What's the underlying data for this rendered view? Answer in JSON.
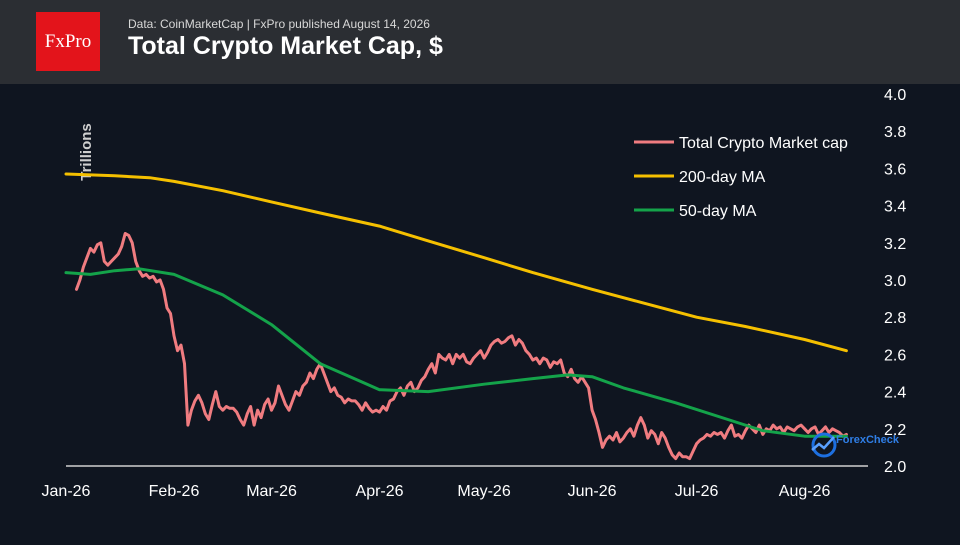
{
  "header": {
    "logo_text": "FxPro",
    "source": "Data: CoinMarketCap | FxPro published August 14, 2026",
    "title": "Total Crypto Market Cap, $"
  },
  "watermark": "ForexCheck",
  "colors": {
    "background": "#0f1520",
    "header": "#2b2e33",
    "brand": "#e3141b",
    "market_cap": "#f07c80",
    "ma200": "#f5c000",
    "ma50": "#14a34a"
  },
  "chart_data": {
    "type": "line",
    "title": "Total Crypto Market Cap, $",
    "ylabel": "Trillions",
    "ylim": [
      2.0,
      4.0
    ],
    "y_ticks": [
      "2.0",
      "2.2",
      "2.4",
      "2.6",
      "2.8",
      "3.0",
      "3.2",
      "3.4",
      "3.6",
      "3.8",
      "4.0"
    ],
    "x_ticks": [
      {
        "label": "Jan-26",
        "date": "2026-01-01"
      },
      {
        "label": "Feb-26",
        "date": "2026-02-01"
      },
      {
        "label": "Mar-26",
        "date": "2026-03-01"
      },
      {
        "label": "Apr-26",
        "date": "2026-04-01"
      },
      {
        "label": "May-26",
        "date": "2026-05-01"
      },
      {
        "label": "Jun-26",
        "date": "2026-06-01"
      },
      {
        "label": "Jul-26",
        "date": "2026-07-01"
      },
      {
        "label": "Aug-26",
        "date": "2026-08-01"
      }
    ],
    "legend_position": "top-right",
    "grid": false,
    "series": [
      {
        "name": "Total Crypto Market cap",
        "color": "#f07c80",
        "points": [
          [
            "2026-01-04",
            2.95
          ],
          [
            "2026-01-05",
            3.0
          ],
          [
            "2026-01-06",
            3.07
          ],
          [
            "2026-01-07",
            3.12
          ],
          [
            "2026-01-08",
            3.17
          ],
          [
            "2026-01-09",
            3.15
          ],
          [
            "2026-01-10",
            3.19
          ],
          [
            "2026-01-11",
            3.2
          ],
          [
            "2026-01-12",
            3.1
          ],
          [
            "2026-01-13",
            3.08
          ],
          [
            "2026-01-14",
            3.1
          ],
          [
            "2026-01-15",
            3.12
          ],
          [
            "2026-01-16",
            3.14
          ],
          [
            "2026-01-17",
            3.18
          ],
          [
            "2026-01-18",
            3.25
          ],
          [
            "2026-01-19",
            3.24
          ],
          [
            "2026-01-20",
            3.2
          ],
          [
            "2026-01-21",
            3.1
          ],
          [
            "2026-01-22",
            3.05
          ],
          [
            "2026-01-23",
            3.02
          ],
          [
            "2026-01-24",
            3.03
          ],
          [
            "2026-01-25",
            3.01
          ],
          [
            "2026-01-26",
            3.02
          ],
          [
            "2026-01-27",
            2.99
          ],
          [
            "2026-01-28",
            3.0
          ],
          [
            "2026-01-29",
            2.95
          ],
          [
            "2026-01-30",
            2.85
          ],
          [
            "2026-01-31",
            2.82
          ],
          [
            "2026-02-01",
            2.7
          ],
          [
            "2026-02-02",
            2.62
          ],
          [
            "2026-02-03",
            2.65
          ],
          [
            "2026-02-04",
            2.55
          ],
          [
            "2026-02-05",
            2.22
          ],
          [
            "2026-02-06",
            2.3
          ],
          [
            "2026-02-07",
            2.35
          ],
          [
            "2026-02-08",
            2.38
          ],
          [
            "2026-02-09",
            2.34
          ],
          [
            "2026-02-10",
            2.28
          ],
          [
            "2026-02-11",
            2.25
          ],
          [
            "2026-02-12",
            2.33
          ],
          [
            "2026-02-13",
            2.4
          ],
          [
            "2026-02-14",
            2.32
          ],
          [
            "2026-02-15",
            2.3
          ],
          [
            "2026-02-16",
            2.32
          ],
          [
            "2026-02-17",
            2.31
          ],
          [
            "2026-02-18",
            2.31
          ],
          [
            "2026-02-19",
            2.29
          ],
          [
            "2026-02-20",
            2.25
          ],
          [
            "2026-02-21",
            2.22
          ],
          [
            "2026-02-22",
            2.28
          ],
          [
            "2026-02-23",
            2.32
          ],
          [
            "2026-02-24",
            2.22
          ],
          [
            "2026-02-25",
            2.3
          ],
          [
            "2026-02-26",
            2.26
          ],
          [
            "2026-02-27",
            2.33
          ],
          [
            "2026-02-28",
            2.36
          ],
          [
            "2026-03-01",
            2.3
          ],
          [
            "2026-03-02",
            2.34
          ],
          [
            "2026-03-03",
            2.43
          ],
          [
            "2026-03-04",
            2.38
          ],
          [
            "2026-03-05",
            2.33
          ],
          [
            "2026-03-06",
            2.3
          ],
          [
            "2026-03-07",
            2.35
          ],
          [
            "2026-03-08",
            2.4
          ],
          [
            "2026-03-09",
            2.38
          ],
          [
            "2026-03-10",
            2.43
          ],
          [
            "2026-03-11",
            2.45
          ],
          [
            "2026-03-12",
            2.5
          ],
          [
            "2026-03-13",
            2.47
          ],
          [
            "2026-03-14",
            2.52
          ],
          [
            "2026-03-15",
            2.55
          ],
          [
            "2026-03-16",
            2.5
          ],
          [
            "2026-03-17",
            2.45
          ],
          [
            "2026-03-18",
            2.4
          ],
          [
            "2026-03-19",
            2.42
          ],
          [
            "2026-03-20",
            2.38
          ],
          [
            "2026-03-21",
            2.37
          ],
          [
            "2026-03-22",
            2.34
          ],
          [
            "2026-03-23",
            2.36
          ],
          [
            "2026-03-24",
            2.35
          ],
          [
            "2026-03-25",
            2.35
          ],
          [
            "2026-03-26",
            2.33
          ],
          [
            "2026-03-27",
            2.3
          ],
          [
            "2026-03-28",
            2.34
          ],
          [
            "2026-03-29",
            2.31
          ],
          [
            "2026-03-30",
            2.29
          ],
          [
            "2026-03-31",
            2.3
          ],
          [
            "2026-04-01",
            2.29
          ],
          [
            "2026-04-02",
            2.32
          ],
          [
            "2026-04-03",
            2.3
          ],
          [
            "2026-04-04",
            2.35
          ],
          [
            "2026-04-05",
            2.36
          ],
          [
            "2026-04-06",
            2.4
          ],
          [
            "2026-04-07",
            2.42
          ],
          [
            "2026-04-08",
            2.38
          ],
          [
            "2026-04-09",
            2.43
          ],
          [
            "2026-04-10",
            2.45
          ],
          [
            "2026-04-11",
            2.4
          ],
          [
            "2026-04-12",
            2.42
          ],
          [
            "2026-04-13",
            2.46
          ],
          [
            "2026-04-14",
            2.48
          ],
          [
            "2026-04-15",
            2.52
          ],
          [
            "2026-04-16",
            2.55
          ],
          [
            "2026-04-17",
            2.5
          ],
          [
            "2026-04-18",
            2.6
          ],
          [
            "2026-04-19",
            2.58
          ],
          [
            "2026-04-20",
            2.57
          ],
          [
            "2026-04-21",
            2.6
          ],
          [
            "2026-04-22",
            2.55
          ],
          [
            "2026-04-23",
            2.6
          ],
          [
            "2026-04-24",
            2.58
          ],
          [
            "2026-04-25",
            2.6
          ],
          [
            "2026-04-26",
            2.56
          ],
          [
            "2026-04-27",
            2.55
          ],
          [
            "2026-04-28",
            2.58
          ],
          [
            "2026-04-29",
            2.6
          ],
          [
            "2026-04-30",
            2.62
          ],
          [
            "2026-05-01",
            2.58
          ],
          [
            "2026-05-02",
            2.61
          ],
          [
            "2026-05-03",
            2.65
          ],
          [
            "2026-05-04",
            2.67
          ],
          [
            "2026-05-05",
            2.68
          ],
          [
            "2026-05-06",
            2.66
          ],
          [
            "2026-05-07",
            2.67
          ],
          [
            "2026-05-08",
            2.69
          ],
          [
            "2026-05-09",
            2.7
          ],
          [
            "2026-05-10",
            2.65
          ],
          [
            "2026-05-11",
            2.68
          ],
          [
            "2026-05-12",
            2.66
          ],
          [
            "2026-05-13",
            2.62
          ],
          [
            "2026-05-14",
            2.6
          ],
          [
            "2026-05-15",
            2.57
          ],
          [
            "2026-05-16",
            2.58
          ],
          [
            "2026-05-17",
            2.55
          ],
          [
            "2026-05-18",
            2.58
          ],
          [
            "2026-05-19",
            2.57
          ],
          [
            "2026-05-20",
            2.53
          ],
          [
            "2026-05-21",
            2.56
          ],
          [
            "2026-05-22",
            2.55
          ],
          [
            "2026-05-23",
            2.57
          ],
          [
            "2026-05-24",
            2.5
          ],
          [
            "2026-05-25",
            2.48
          ],
          [
            "2026-05-26",
            2.52
          ],
          [
            "2026-05-27",
            2.47
          ],
          [
            "2026-05-28",
            2.45
          ],
          [
            "2026-05-29",
            2.48
          ],
          [
            "2026-05-30",
            2.45
          ],
          [
            "2026-05-31",
            2.42
          ],
          [
            "2026-06-01",
            2.3
          ],
          [
            "2026-06-02",
            2.25
          ],
          [
            "2026-06-03",
            2.18
          ],
          [
            "2026-06-04",
            2.1
          ],
          [
            "2026-06-05",
            2.14
          ],
          [
            "2026-06-06",
            2.16
          ],
          [
            "2026-06-07",
            2.14
          ],
          [
            "2026-06-08",
            2.18
          ],
          [
            "2026-06-09",
            2.13
          ],
          [
            "2026-06-10",
            2.15
          ],
          [
            "2026-06-11",
            2.18
          ],
          [
            "2026-06-12",
            2.2
          ],
          [
            "2026-06-13",
            2.16
          ],
          [
            "2026-06-14",
            2.22
          ],
          [
            "2026-06-15",
            2.26
          ],
          [
            "2026-06-16",
            2.22
          ],
          [
            "2026-06-17",
            2.15
          ],
          [
            "2026-06-18",
            2.19
          ],
          [
            "2026-06-19",
            2.17
          ],
          [
            "2026-06-20",
            2.12
          ],
          [
            "2026-06-21",
            2.18
          ],
          [
            "2026-06-22",
            2.15
          ],
          [
            "2026-06-23",
            2.1
          ],
          [
            "2026-06-24",
            2.06
          ],
          [
            "2026-06-25",
            2.04
          ],
          [
            "2026-06-26",
            2.07
          ],
          [
            "2026-06-27",
            2.05
          ],
          [
            "2026-06-28",
            2.05
          ],
          [
            "2026-06-29",
            2.04
          ],
          [
            "2026-06-30",
            2.08
          ],
          [
            "2026-07-01",
            2.12
          ],
          [
            "2026-07-02",
            2.14
          ],
          [
            "2026-07-03",
            2.15
          ],
          [
            "2026-07-04",
            2.17
          ],
          [
            "2026-07-05",
            2.16
          ],
          [
            "2026-07-06",
            2.18
          ],
          [
            "2026-07-07",
            2.17
          ],
          [
            "2026-07-08",
            2.18
          ],
          [
            "2026-07-09",
            2.15
          ],
          [
            "2026-07-10",
            2.19
          ],
          [
            "2026-07-11",
            2.22
          ],
          [
            "2026-07-12",
            2.16
          ],
          [
            "2026-07-13",
            2.17
          ],
          [
            "2026-07-14",
            2.15
          ],
          [
            "2026-07-15",
            2.19
          ],
          [
            "2026-07-16",
            2.22
          ],
          [
            "2026-07-17",
            2.2
          ],
          [
            "2026-07-18",
            2.18
          ],
          [
            "2026-07-19",
            2.22
          ],
          [
            "2026-07-20",
            2.17
          ],
          [
            "2026-07-21",
            2.2
          ],
          [
            "2026-07-22",
            2.19
          ],
          [
            "2026-07-23",
            2.22
          ],
          [
            "2026-07-24",
            2.2
          ],
          [
            "2026-07-25",
            2.21
          ],
          [
            "2026-07-26",
            2.18
          ],
          [
            "2026-07-27",
            2.21
          ],
          [
            "2026-07-28",
            2.2
          ],
          [
            "2026-07-29",
            2.19
          ],
          [
            "2026-07-30",
            2.21
          ],
          [
            "2026-07-31",
            2.22
          ],
          [
            "2026-08-01",
            2.2
          ],
          [
            "2026-08-02",
            2.18
          ],
          [
            "2026-08-03",
            2.2
          ],
          [
            "2026-08-04",
            2.21
          ],
          [
            "2026-08-05",
            2.17
          ],
          [
            "2026-08-06",
            2.19
          ],
          [
            "2026-08-07",
            2.21
          ],
          [
            "2026-08-08",
            2.18
          ],
          [
            "2026-08-09",
            2.2
          ],
          [
            "2026-08-10",
            2.19
          ],
          [
            "2026-08-11",
            2.18
          ],
          [
            "2026-08-12",
            2.16
          ],
          [
            "2026-08-13",
            2.17
          ]
        ]
      },
      {
        "name": "200-day MA",
        "color": "#f5c000",
        "points": [
          [
            "2026-01-01",
            3.57
          ],
          [
            "2026-01-15",
            3.56
          ],
          [
            "2026-01-25",
            3.55
          ],
          [
            "2026-02-01",
            3.53
          ],
          [
            "2026-02-15",
            3.48
          ],
          [
            "2026-03-01",
            3.42
          ],
          [
            "2026-03-15",
            3.36
          ],
          [
            "2026-04-01",
            3.29
          ],
          [
            "2026-04-15",
            3.21
          ],
          [
            "2026-05-01",
            3.12
          ],
          [
            "2026-05-15",
            3.04
          ],
          [
            "2026-06-01",
            2.95
          ],
          [
            "2026-06-15",
            2.88
          ],
          [
            "2026-07-01",
            2.8
          ],
          [
            "2026-07-15",
            2.75
          ],
          [
            "2026-08-01",
            2.68
          ],
          [
            "2026-08-13",
            2.62
          ]
        ]
      },
      {
        "name": "50-day MA",
        "color": "#14a34a",
        "points": [
          [
            "2026-01-01",
            3.04
          ],
          [
            "2026-01-08",
            3.03
          ],
          [
            "2026-01-15",
            3.05
          ],
          [
            "2026-01-22",
            3.06
          ],
          [
            "2026-02-01",
            3.03
          ],
          [
            "2026-02-15",
            2.92
          ],
          [
            "2026-03-01",
            2.76
          ],
          [
            "2026-03-15",
            2.55
          ],
          [
            "2026-04-01",
            2.41
          ],
          [
            "2026-04-15",
            2.4
          ],
          [
            "2026-05-01",
            2.44
          ],
          [
            "2026-05-15",
            2.47
          ],
          [
            "2026-05-25",
            2.49
          ],
          [
            "2026-06-01",
            2.48
          ],
          [
            "2026-06-10",
            2.42
          ],
          [
            "2026-06-25",
            2.34
          ],
          [
            "2026-07-10",
            2.25
          ],
          [
            "2026-07-20",
            2.19
          ],
          [
            "2026-08-01",
            2.16
          ],
          [
            "2026-08-13",
            2.16
          ]
        ]
      }
    ]
  }
}
